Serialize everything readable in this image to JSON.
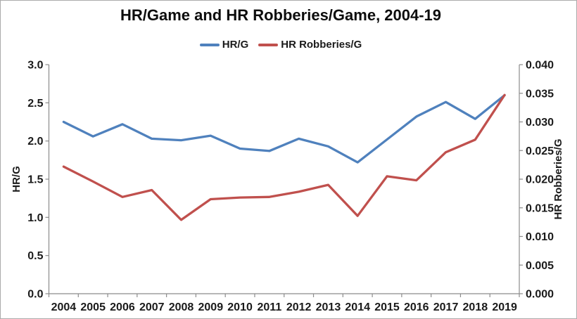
{
  "title": "HR/Game and HR Robberies/Game, 2004-19",
  "legend": [
    {
      "label": "HR/G",
      "color": "#4F81BD"
    },
    {
      "label": "HR Robberies/G",
      "color": "#C0504D"
    }
  ],
  "colors": {
    "series_blue": "#4F81BD",
    "series_red": "#C0504D",
    "axis_gray": "#8C8C8C",
    "text_dark": "#1a1a1a"
  },
  "chart_data": {
    "type": "line",
    "title": "HR/Game and HR Robberies/Game, 2004-19",
    "categories": [
      "2004",
      "2005",
      "2006",
      "2007",
      "2008",
      "2009",
      "2010",
      "2011",
      "2012",
      "2013",
      "2014",
      "2015",
      "2016",
      "2017",
      "2018",
      "2019"
    ],
    "series": [
      {
        "name": "HR/G",
        "axis": "left",
        "color": "#4F81BD",
        "values": [
          2.25,
          2.06,
          2.22,
          2.03,
          2.01,
          2.07,
          1.9,
          1.87,
          2.03,
          1.93,
          1.72,
          2.02,
          2.32,
          2.51,
          2.29,
          2.6
        ]
      },
      {
        "name": "HR Robberies/G",
        "axis": "right",
        "color": "#C0504D",
        "values": [
          0.0222,
          0.0196,
          0.0169,
          0.0181,
          0.0129,
          0.0165,
          0.0168,
          0.0169,
          0.0178,
          0.019,
          0.0136,
          0.0205,
          0.0198,
          0.0247,
          0.0269,
          0.0347
        ]
      }
    ],
    "left_axis": {
      "label": "HR/G",
      "min": 0,
      "max": 3,
      "ticks": [
        "0.0",
        "0.5",
        "1.0",
        "1.5",
        "2.0",
        "2.5",
        "3.0"
      ]
    },
    "right_axis": {
      "label": "HR Robberies/G",
      "min": 0,
      "max": 0.04,
      "ticks": [
        "0.000",
        "0.005",
        "0.010",
        "0.015",
        "0.020",
        "0.025",
        "0.030",
        "0.035",
        "0.040"
      ]
    },
    "legend_position": "top",
    "grid": "off"
  }
}
